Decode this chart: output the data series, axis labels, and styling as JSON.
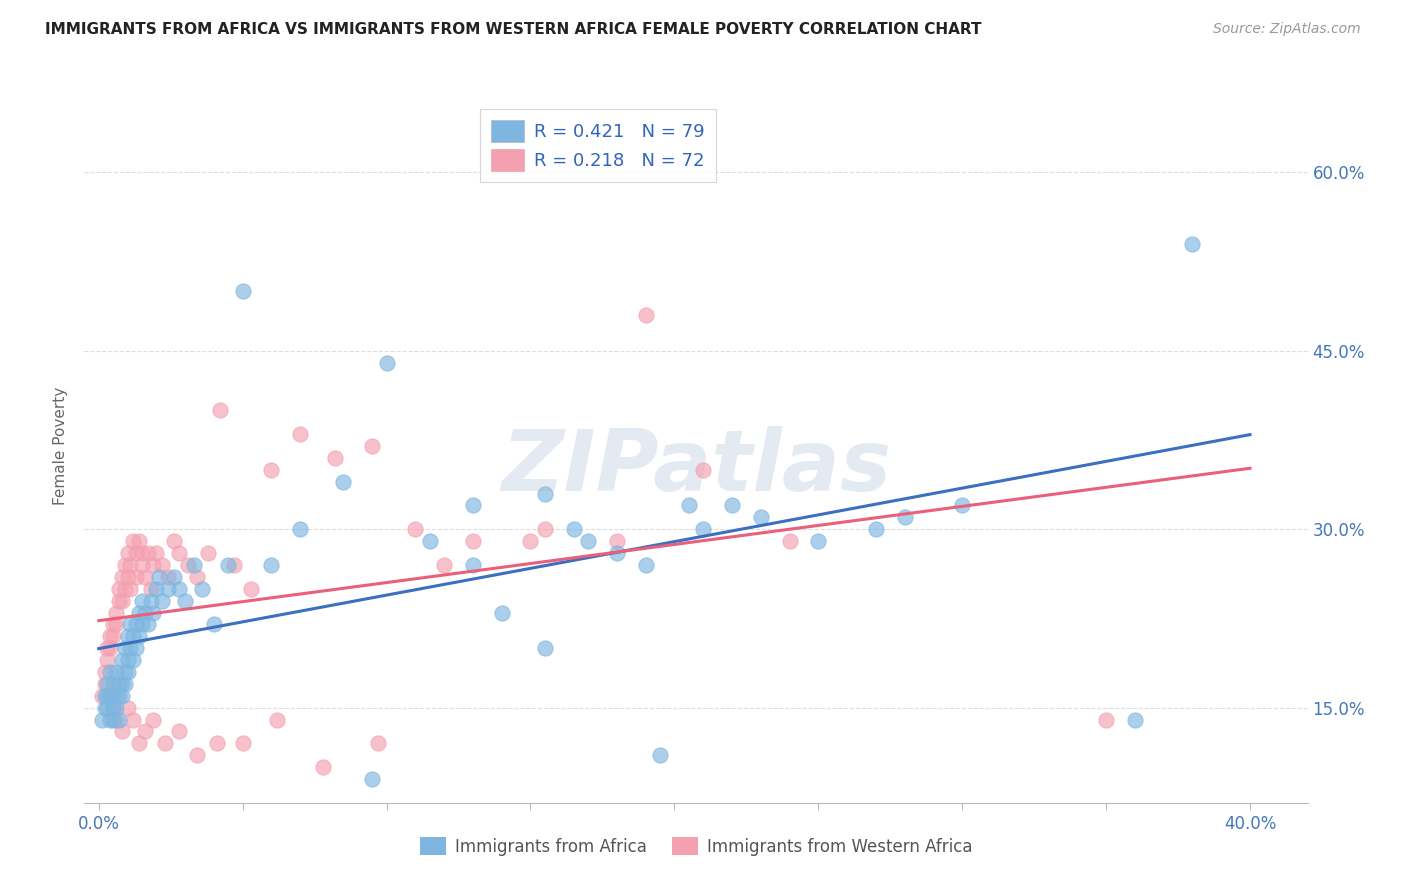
{
  "title": "IMMIGRANTS FROM AFRICA VS IMMIGRANTS FROM WESTERN AFRICA FEMALE POVERTY CORRELATION CHART",
  "source": "Source: ZipAtlas.com",
  "ylabel": "Female Poverty",
  "yticks_labels": [
    "15.0%",
    "30.0%",
    "45.0%",
    "60.0%"
  ],
  "yticks_vals": [
    0.15,
    0.3,
    0.45,
    0.6
  ],
  "xticks_vals": [
    0.0,
    0.05,
    0.1,
    0.15,
    0.2,
    0.25,
    0.3,
    0.35,
    0.4
  ],
  "xticks_labels_show": {
    "0.0": "0.0%",
    "0.4": "40.0%"
  },
  "xlim": [
    -0.005,
    0.42
  ],
  "ylim": [
    0.07,
    0.67
  ],
  "series1_label": "Immigrants from Africa",
  "series2_label": "Immigrants from Western Africa",
  "R1": "0.421",
  "N1": "79",
  "R2": "0.218",
  "N2": "72",
  "color1": "#7EB6E0",
  "color2": "#F4A0B0",
  "trendline_color1": "#3B6FBF",
  "trendline_color2": "#E8607A",
  "watermark_text": "ZIPatlas",
  "background_color": "#FFFFFF",
  "grid_color": "#DDDDDD",
  "title_color": "#222222",
  "axis_label_color": "#4477BB",
  "legend_r_color": "#3366BB",
  "scatter1_x": [
    0.001,
    0.002,
    0.002,
    0.003,
    0.003,
    0.003,
    0.004,
    0.004,
    0.004,
    0.005,
    0.005,
    0.005,
    0.006,
    0.006,
    0.006,
    0.007,
    0.007,
    0.007,
    0.008,
    0.008,
    0.008,
    0.009,
    0.009,
    0.009,
    0.01,
    0.01,
    0.01,
    0.011,
    0.011,
    0.012,
    0.012,
    0.013,
    0.013,
    0.014,
    0.014,
    0.015,
    0.015,
    0.016,
    0.017,
    0.018,
    0.019,
    0.02,
    0.021,
    0.022,
    0.024,
    0.026,
    0.028,
    0.03,
    0.033,
    0.036,
    0.04,
    0.045,
    0.05,
    0.06,
    0.07,
    0.085,
    0.1,
    0.115,
    0.13,
    0.155,
    0.18,
    0.205,
    0.23,
    0.27,
    0.3,
    0.14,
    0.165,
    0.25,
    0.22,
    0.19,
    0.17,
    0.28,
    0.13,
    0.36,
    0.38,
    0.195,
    0.21,
    0.155,
    0.095
  ],
  "scatter1_y": [
    0.14,
    0.16,
    0.15,
    0.17,
    0.15,
    0.16,
    0.14,
    0.18,
    0.16,
    0.15,
    0.17,
    0.14,
    0.16,
    0.18,
    0.15,
    0.17,
    0.16,
    0.14,
    0.19,
    0.17,
    0.16,
    0.2,
    0.18,
    0.17,
    0.21,
    0.19,
    0.18,
    0.2,
    0.22,
    0.21,
    0.19,
    0.22,
    0.2,
    0.23,
    0.21,
    0.22,
    0.24,
    0.23,
    0.22,
    0.24,
    0.23,
    0.25,
    0.26,
    0.24,
    0.25,
    0.26,
    0.25,
    0.24,
    0.27,
    0.25,
    0.22,
    0.27,
    0.5,
    0.27,
    0.3,
    0.34,
    0.44,
    0.29,
    0.32,
    0.33,
    0.28,
    0.32,
    0.31,
    0.3,
    0.32,
    0.23,
    0.3,
    0.29,
    0.32,
    0.27,
    0.29,
    0.31,
    0.27,
    0.14,
    0.54,
    0.11,
    0.3,
    0.2,
    0.09
  ],
  "scatter2_x": [
    0.001,
    0.002,
    0.002,
    0.003,
    0.003,
    0.004,
    0.004,
    0.005,
    0.005,
    0.006,
    0.006,
    0.007,
    0.007,
    0.008,
    0.008,
    0.009,
    0.009,
    0.01,
    0.01,
    0.011,
    0.011,
    0.012,
    0.013,
    0.013,
    0.014,
    0.015,
    0.015,
    0.016,
    0.017,
    0.018,
    0.019,
    0.02,
    0.022,
    0.024,
    0.026,
    0.028,
    0.031,
    0.034,
    0.038,
    0.042,
    0.047,
    0.053,
    0.06,
    0.07,
    0.082,
    0.095,
    0.11,
    0.13,
    0.155,
    0.18,
    0.21,
    0.24,
    0.005,
    0.006,
    0.008,
    0.01,
    0.012,
    0.014,
    0.016,
    0.019,
    0.023,
    0.028,
    0.034,
    0.041,
    0.05,
    0.062,
    0.078,
    0.097,
    0.12,
    0.15,
    0.35,
    0.19
  ],
  "scatter2_y": [
    0.16,
    0.18,
    0.17,
    0.2,
    0.19,
    0.21,
    0.2,
    0.22,
    0.21,
    0.23,
    0.22,
    0.25,
    0.24,
    0.26,
    0.24,
    0.27,
    0.25,
    0.28,
    0.26,
    0.27,
    0.25,
    0.29,
    0.28,
    0.26,
    0.29,
    0.28,
    0.27,
    0.26,
    0.28,
    0.25,
    0.27,
    0.28,
    0.27,
    0.26,
    0.29,
    0.28,
    0.27,
    0.26,
    0.28,
    0.4,
    0.27,
    0.25,
    0.35,
    0.38,
    0.36,
    0.37,
    0.3,
    0.29,
    0.3,
    0.29,
    0.35,
    0.29,
    0.15,
    0.14,
    0.13,
    0.15,
    0.14,
    0.12,
    0.13,
    0.14,
    0.12,
    0.13,
    0.11,
    0.12,
    0.12,
    0.14,
    0.1,
    0.12,
    0.27,
    0.29,
    0.14,
    0.48
  ]
}
